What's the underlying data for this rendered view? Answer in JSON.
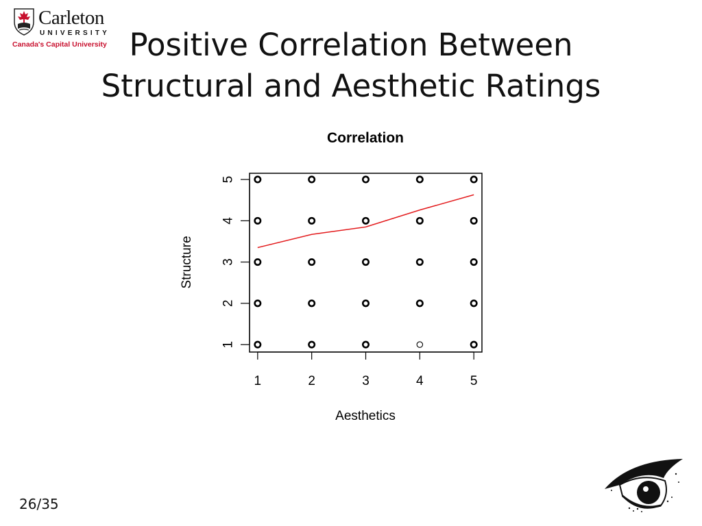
{
  "logo": {
    "name": "Carleton",
    "university": "UNIVERSITY",
    "tagline": "Canada's Capital University"
  },
  "slide": {
    "title_line1": "Positive Correlation Between",
    "title_line2": "Structural and Aesthetic Ratings",
    "page_number": "26/35"
  },
  "chart_data": {
    "type": "scatter",
    "title": "Correlation",
    "xlabel": "Aesthetics",
    "ylabel": "Structure",
    "xlim": [
      0.85,
      5.15
    ],
    "ylim": [
      0.82,
      5.15
    ],
    "x_ticks": [
      1,
      2,
      3,
      4,
      5
    ],
    "y_ticks": [
      1,
      2,
      3,
      4,
      5
    ],
    "grid": false,
    "points": [
      {
        "x": 1,
        "y": 1,
        "bold": true
      },
      {
        "x": 2,
        "y": 1,
        "bold": true
      },
      {
        "x": 3,
        "y": 1,
        "bold": true
      },
      {
        "x": 4,
        "y": 1,
        "bold": false
      },
      {
        "x": 5,
        "y": 1,
        "bold": true
      },
      {
        "x": 1,
        "y": 2,
        "bold": true
      },
      {
        "x": 2,
        "y": 2,
        "bold": true
      },
      {
        "x": 3,
        "y": 2,
        "bold": true
      },
      {
        "x": 4,
        "y": 2,
        "bold": true
      },
      {
        "x": 5,
        "y": 2,
        "bold": true
      },
      {
        "x": 1,
        "y": 3,
        "bold": true
      },
      {
        "x": 2,
        "y": 3,
        "bold": true
      },
      {
        "x": 3,
        "y": 3,
        "bold": true
      },
      {
        "x": 4,
        "y": 3,
        "bold": true
      },
      {
        "x": 5,
        "y": 3,
        "bold": true
      },
      {
        "x": 1,
        "y": 4,
        "bold": true
      },
      {
        "x": 2,
        "y": 4,
        "bold": true
      },
      {
        "x": 3,
        "y": 4,
        "bold": true
      },
      {
        "x": 4,
        "y": 4,
        "bold": true
      },
      {
        "x": 5,
        "y": 4,
        "bold": true
      },
      {
        "x": 1,
        "y": 5,
        "bold": true
      },
      {
        "x": 2,
        "y": 5,
        "bold": true
      },
      {
        "x": 3,
        "y": 5,
        "bold": true
      },
      {
        "x": 4,
        "y": 5,
        "bold": true
      },
      {
        "x": 5,
        "y": 5,
        "bold": true
      }
    ],
    "trend_line": {
      "color": "#e31a1c",
      "x": [
        1,
        2,
        3,
        4,
        5
      ],
      "y": [
        3.35,
        3.67,
        3.85,
        4.26,
        4.63
      ]
    }
  }
}
